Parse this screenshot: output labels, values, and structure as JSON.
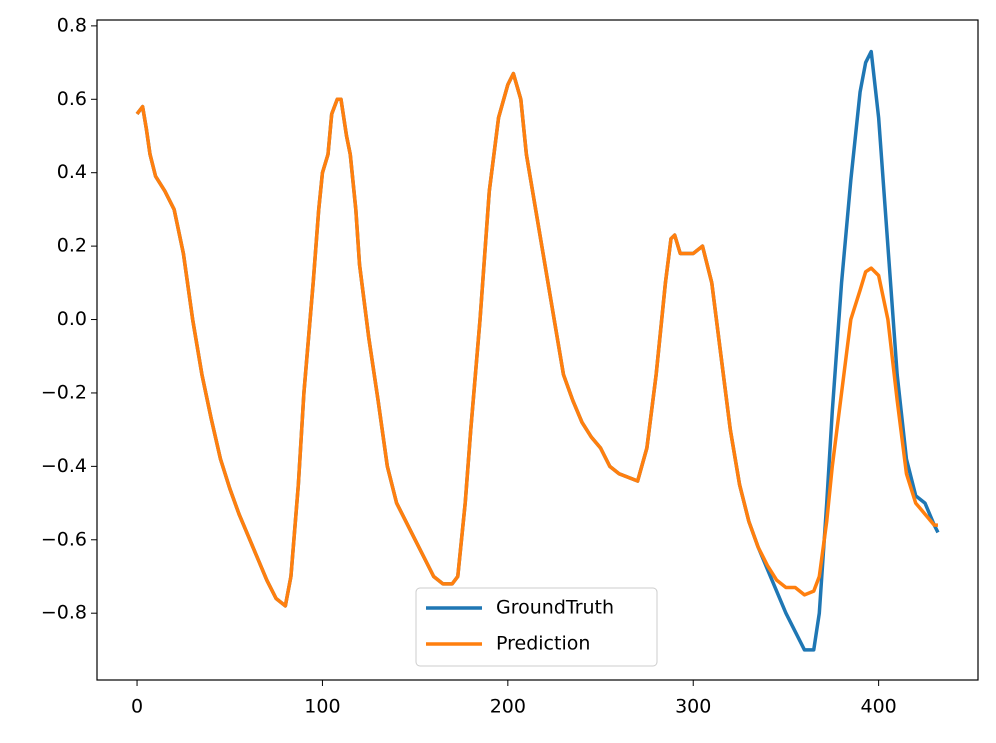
{
  "chart_data": {
    "type": "line",
    "x": [
      0,
      3,
      5,
      7,
      10,
      15,
      20,
      25,
      30,
      35,
      40,
      45,
      50,
      55,
      60,
      65,
      70,
      75,
      80,
      83,
      87,
      90,
      95,
      98,
      100,
      103,
      105,
      108,
      110,
      113,
      115,
      118,
      120,
      125,
      130,
      135,
      140,
      145,
      150,
      155,
      160,
      165,
      170,
      173,
      177,
      180,
      185,
      190,
      195,
      200,
      203,
      207,
      210,
      215,
      220,
      225,
      230,
      235,
      240,
      245,
      250,
      255,
      260,
      265,
      270,
      275,
      280,
      285,
      288,
      290,
      293,
      300,
      305,
      310,
      315,
      320,
      325,
      330,
      335,
      340,
      345,
      350,
      355,
      360,
      365,
      368,
      372,
      375,
      380,
      385,
      390,
      393,
      396,
      400,
      405,
      410,
      415,
      420,
      425,
      430,
      432
    ],
    "series": [
      {
        "name": "GroundTruth",
        "color": "#1f77b4",
        "values": [
          0.56,
          0.58,
          0.52,
          0.45,
          0.39,
          0.35,
          0.3,
          0.18,
          0.0,
          -0.15,
          -0.27,
          -0.38,
          -0.46,
          -0.53,
          -0.59,
          -0.65,
          -0.71,
          -0.76,
          -0.78,
          -0.7,
          -0.45,
          -0.2,
          0.1,
          0.3,
          0.4,
          0.45,
          0.56,
          0.6,
          0.6,
          0.5,
          0.45,
          0.3,
          0.15,
          -0.05,
          -0.22,
          -0.4,
          -0.5,
          -0.55,
          -0.6,
          -0.65,
          -0.7,
          -0.72,
          -0.72,
          -0.7,
          -0.5,
          -0.3,
          0.0,
          0.35,
          0.55,
          0.64,
          0.67,
          0.6,
          0.45,
          0.3,
          0.15,
          0.0,
          -0.15,
          -0.22,
          -0.28,
          -0.32,
          -0.35,
          -0.4,
          -0.42,
          -0.43,
          -0.44,
          -0.35,
          -0.15,
          0.1,
          0.22,
          0.23,
          0.18,
          0.18,
          0.2,
          0.1,
          -0.1,
          -0.3,
          -0.45,
          -0.55,
          -0.62,
          -0.68,
          -0.74,
          -0.8,
          -0.85,
          -0.9,
          -0.9,
          -0.8,
          -0.5,
          -0.25,
          0.1,
          0.38,
          0.62,
          0.7,
          0.73,
          0.55,
          0.2,
          -0.15,
          -0.38,
          -0.48,
          -0.5,
          -0.56,
          -0.58
        ]
      },
      {
        "name": "Prediction",
        "color": "#ff7f0e",
        "values": [
          0.56,
          0.58,
          0.52,
          0.45,
          0.39,
          0.35,
          0.3,
          0.18,
          0.0,
          -0.15,
          -0.27,
          -0.38,
          -0.46,
          -0.53,
          -0.59,
          -0.65,
          -0.71,
          -0.76,
          -0.78,
          -0.7,
          -0.45,
          -0.2,
          0.1,
          0.3,
          0.4,
          0.45,
          0.56,
          0.6,
          0.6,
          0.5,
          0.45,
          0.3,
          0.15,
          -0.05,
          -0.22,
          -0.4,
          -0.5,
          -0.55,
          -0.6,
          -0.65,
          -0.7,
          -0.72,
          -0.72,
          -0.7,
          -0.5,
          -0.3,
          0.0,
          0.35,
          0.55,
          0.64,
          0.67,
          0.6,
          0.45,
          0.3,
          0.15,
          0.0,
          -0.15,
          -0.22,
          -0.28,
          -0.32,
          -0.35,
          -0.4,
          -0.42,
          -0.43,
          -0.44,
          -0.35,
          -0.15,
          0.1,
          0.22,
          0.23,
          0.18,
          0.18,
          0.2,
          0.1,
          -0.1,
          -0.3,
          -0.45,
          -0.55,
          -0.62,
          -0.67,
          -0.71,
          -0.73,
          -0.73,
          -0.75,
          -0.74,
          -0.7,
          -0.55,
          -0.4,
          -0.2,
          0.0,
          0.08,
          0.13,
          0.14,
          0.12,
          0.0,
          -0.22,
          -0.42,
          -0.5,
          -0.53,
          -0.56,
          -0.56
        ]
      }
    ],
    "xlim": [
      -21.6,
      453.6
    ],
    "xticks": [
      0,
      100,
      200,
      300,
      400
    ],
    "ylim": [
      -0.982,
      0.816
    ],
    "yticks": [
      {
        "value": -0.8,
        "label": "−0.8"
      },
      {
        "value": -0.6,
        "label": "−0.6"
      },
      {
        "value": -0.4,
        "label": "−0.4"
      },
      {
        "value": -0.2,
        "label": "−0.2"
      },
      {
        "value": 0,
        "label": "0.0"
      },
      0.2,
      0.4,
      0.6,
      0.8
    ],
    "grid": false,
    "legend": "lower center"
  }
}
